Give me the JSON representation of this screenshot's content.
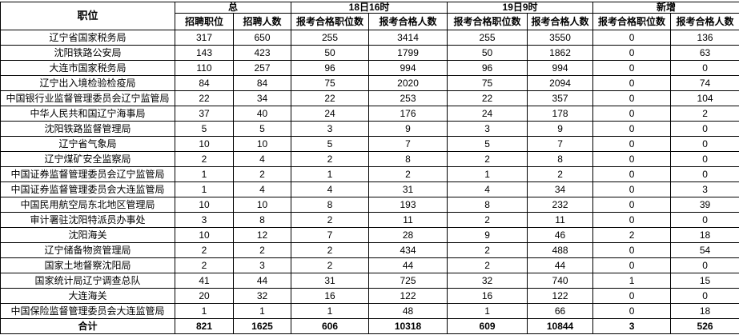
{
  "table": {
    "corner_header": "职位",
    "group_headers": [
      "总",
      "18日16时",
      "19日9时",
      "新增"
    ],
    "sub_headers": [
      "招聘职位",
      "招聘人数",
      "报考合格职位数",
      "报考合格人数",
      "报考合格职位数",
      "报考合格人数",
      "报考合格职位数",
      "报考合格人数"
    ],
    "rows": [
      {
        "name": "辽宁省国家税务局",
        "values": [
          317,
          650,
          255,
          3414,
          255,
          3550,
          0,
          136
        ]
      },
      {
        "name": "沈阳铁路公安局",
        "values": [
          143,
          423,
          50,
          1799,
          50,
          1862,
          0,
          63
        ]
      },
      {
        "name": "大连市国家税务局",
        "values": [
          110,
          257,
          96,
          994,
          96,
          994,
          0,
          0
        ]
      },
      {
        "name": "辽宁出入境检验检疫局",
        "values": [
          84,
          84,
          75,
          2020,
          75,
          2094,
          0,
          74
        ]
      },
      {
        "name": "中国银行业监督管理委员会辽宁监管局",
        "values": [
          22,
          34,
          22,
          253,
          22,
          357,
          0,
          104
        ]
      },
      {
        "name": "中华人民共和国辽宁海事局",
        "values": [
          37,
          40,
          24,
          176,
          24,
          178,
          0,
          2
        ]
      },
      {
        "name": "沈阳铁路监督管理局",
        "values": [
          5,
          5,
          3,
          9,
          3,
          9,
          0,
          0
        ]
      },
      {
        "name": "辽宁省气象局",
        "values": [
          10,
          10,
          5,
          7,
          5,
          7,
          0,
          0
        ]
      },
      {
        "name": "辽宁煤矿安全监察局",
        "values": [
          2,
          4,
          2,
          8,
          2,
          8,
          0,
          0
        ]
      },
      {
        "name": "中国证券监督管理委员会辽宁监管局",
        "values": [
          1,
          2,
          1,
          2,
          1,
          2,
          0,
          0
        ]
      },
      {
        "name": "中国证券监督管理委员会大连监管局",
        "values": [
          1,
          4,
          4,
          31,
          4,
          34,
          0,
          3
        ]
      },
      {
        "name": "中国民用航空局东北地区管理局",
        "values": [
          10,
          10,
          8,
          193,
          8,
          232,
          0,
          39
        ]
      },
      {
        "name": "审计署驻沈阳特派员办事处",
        "values": [
          3,
          8,
          2,
          11,
          2,
          11,
          0,
          0
        ]
      },
      {
        "name": "沈阳海关",
        "values": [
          10,
          12,
          7,
          28,
          9,
          46,
          2,
          18
        ]
      },
      {
        "name": "辽宁储备物资管理局",
        "values": [
          2,
          2,
          2,
          434,
          2,
          488,
          0,
          54
        ]
      },
      {
        "name": "国家土地督察沈阳局",
        "values": [
          2,
          3,
          2,
          44,
          2,
          44,
          0,
          0
        ]
      },
      {
        "name": "国家统计局辽宁调查总队",
        "values": [
          41,
          44,
          31,
          725,
          32,
          740,
          1,
          15
        ]
      },
      {
        "name": "大连海关",
        "values": [
          20,
          32,
          16,
          122,
          16,
          122,
          0,
          0
        ]
      },
      {
        "name": "中国保险监督管理委员会大连监管局",
        "values": [
          1,
          1,
          1,
          48,
          1,
          66,
          0,
          18
        ]
      },
      {
        "name": "合计",
        "is_total": true,
        "values": [
          821,
          1625,
          606,
          10318,
          609,
          10844,
          3,
          526
        ]
      }
    ]
  },
  "colors": {
    "border": "#000000",
    "text": "#000000",
    "background": "#ffffff"
  }
}
